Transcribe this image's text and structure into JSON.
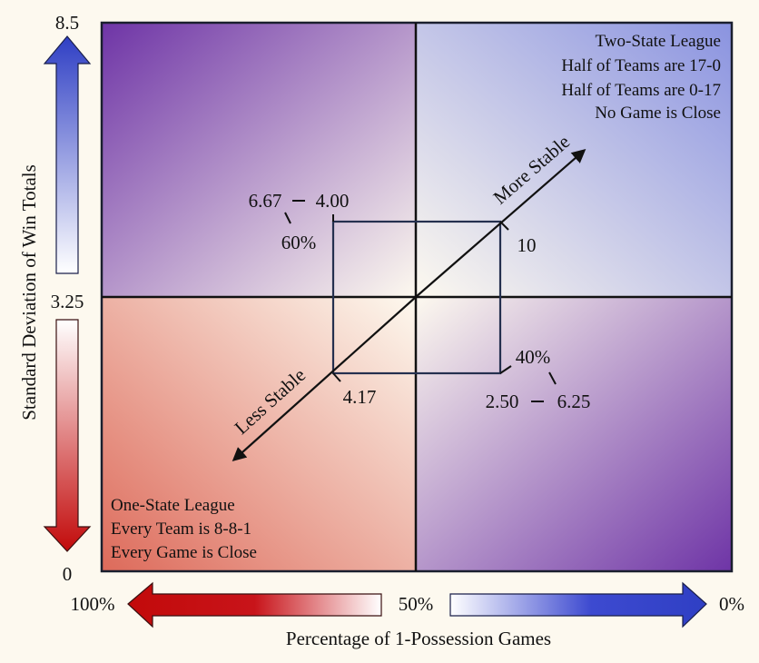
{
  "y_axis": {
    "label": "Standard Deviation of Win Totals",
    "top_value": "8.5",
    "mid_value": "3.25",
    "bottom_value": "0",
    "top_color": "#2f3fc4",
    "bottom_color": "#c20a0a"
  },
  "x_axis": {
    "label": "Percentage of 1-Possession Games",
    "left_value": "100%",
    "mid_value": "50%",
    "right_value": "0%",
    "left_color": "#c20a0a",
    "right_color": "#2f3fc4"
  },
  "quadrants": {
    "top_left": {
      "color_a": "#6e34a6",
      "color_b": "#fdf9ef"
    },
    "top_right": {
      "color_a": "#8a93e0",
      "color_b": "#fdf9ef",
      "lines": [
        "Two-State League",
        "Half of Teams are 17-0",
        "Half of Teams are 0-17",
        "No Game is Close"
      ]
    },
    "bottom_left": {
      "color_a": "#dd6a5a",
      "color_b": "#fdf9ef",
      "lines": [
        "One-State League",
        "Every Team is 8-8-1",
        "Every Game is Close"
      ]
    },
    "bottom_right": {
      "color_a": "#6e34a6",
      "color_b": "#fdf9ef"
    }
  },
  "diagonal": {
    "upper_label": "More Stable",
    "lower_label": "Less Stable"
  },
  "box_labels": {
    "top_left_left": "6.67",
    "top_left_right": "4.00",
    "top_left_pct": "60%",
    "top_right": "10",
    "bottom_left": "4.17",
    "bottom_right_pct": "40%",
    "bottom_right_left": "2.50",
    "bottom_right_right": "6.25"
  }
}
